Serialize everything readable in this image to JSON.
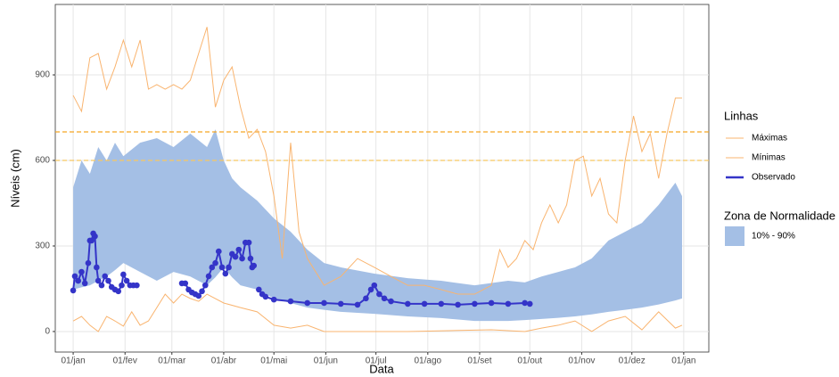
{
  "chart_data": {
    "type": "line",
    "x_label": "Data",
    "y_label": "Níveis (cm)",
    "xlim": [
      -10.7,
      380
    ],
    "ylim": [
      -72,
      1147
    ],
    "xticks": [
      {
        "value": 0,
        "label": "01/jan"
      },
      {
        "value": 31,
        "label": "01/fev"
      },
      {
        "value": 59,
        "label": "01/mar"
      },
      {
        "value": 90,
        "label": "01/abr"
      },
      {
        "value": 120,
        "label": "01/mai"
      },
      {
        "value": 151,
        "label": "01/jun"
      },
      {
        "value": 181,
        "label": "01/jul"
      },
      {
        "value": 212,
        "label": "01/ago"
      },
      {
        "value": 243,
        "label": "01/set"
      },
      {
        "value": 273,
        "label": "01/out"
      },
      {
        "value": 304,
        "label": "01/nov"
      },
      {
        "value": 334,
        "label": "01/dez"
      },
      {
        "value": 365,
        "label": "01/jan"
      }
    ],
    "yticks": [
      0,
      300,
      600,
      900
    ],
    "grid": true,
    "hlines": [
      {
        "value": 700,
        "color": "#f5a623"
      },
      {
        "value": 600,
        "color": "#f7c660"
      }
    ],
    "legend_title": "Linhas",
    "band_legend_title": "Zona de Normalidade",
    "band": {
      "name": "10% - 90%",
      "color": "#a4bfe5",
      "x": [
        0,
        5,
        10,
        15,
        20,
        25,
        30,
        40,
        50,
        60,
        70,
        80,
        85,
        90,
        95,
        100,
        110,
        120,
        130,
        140,
        150,
        160,
        180,
        200,
        220,
        240,
        260,
        270,
        280,
        290,
        300,
        310,
        320,
        330,
        340,
        350,
        360,
        364
      ],
      "high": [
        506,
        600,
        553,
        647,
        600,
        662,
        615,
        662,
        678,
        647,
        694,
        647,
        709,
        600,
        537,
        506,
        459,
        397,
        350,
        287,
        240,
        225,
        203,
        187,
        178,
        162,
        178,
        172,
        193,
        209,
        225,
        256,
        319,
        350,
        381,
        444,
        522,
        475
      ],
      "low": [
        147,
        155,
        162,
        178,
        193,
        215,
        240,
        209,
        178,
        209,
        193,
        162,
        190,
        225,
        190,
        162,
        147,
        116,
        100,
        84,
        76,
        69,
        62,
        53,
        47,
        37,
        37,
        40,
        44,
        48,
        53,
        60,
        69,
        76,
        84,
        95,
        109,
        116
      ]
    },
    "series": [
      {
        "name": "Máximas",
        "color": "#f9b46f",
        "x": [
          0,
          5,
          10,
          15,
          20,
          25,
          30,
          35,
          40,
          45,
          50,
          55,
          60,
          65,
          70,
          75,
          80,
          85,
          90,
          95,
          100,
          105,
          110,
          115,
          120,
          125,
          130,
          135,
          140,
          150,
          160,
          170,
          180,
          190,
          200,
          210,
          220,
          230,
          240,
          250,
          255,
          260,
          265,
          270,
          275,
          280,
          285,
          290,
          295,
          300,
          305,
          310,
          315,
          320,
          325,
          330,
          335,
          340,
          345,
          350,
          355,
          360,
          364
        ],
        "values": [
          828,
          772,
          960,
          975,
          850,
          928,
          1022,
          928,
          1022,
          850,
          866,
          850,
          866,
          850,
          881,
          975,
          1068,
          787,
          881,
          928,
          787,
          678,
          709,
          631,
          475,
          256,
          662,
          350,
          256,
          162,
          193,
          256,
          225,
          193,
          162,
          162,
          147,
          131,
          131,
          162,
          287,
          225,
          256,
          319,
          287,
          381,
          444,
          381,
          444,
          600,
          615,
          475,
          537,
          412,
          381,
          600,
          756,
          631,
          694,
          537,
          694,
          819,
          819
        ]
      },
      {
        "name": "Mínimas",
        "color": "#f9b46f",
        "x": [
          0,
          5,
          10,
          15,
          20,
          25,
          30,
          35,
          40,
          45,
          50,
          55,
          60,
          65,
          70,
          75,
          80,
          90,
          100,
          110,
          120,
          130,
          140,
          150,
          200,
          250,
          270,
          280,
          290,
          300,
          310,
          320,
          330,
          340,
          350,
          360,
          364
        ],
        "values": [
          37,
          53,
          22,
          0,
          53,
          37,
          19,
          69,
          22,
          37,
          84,
          131,
          100,
          131,
          116,
          106,
          131,
          100,
          84,
          69,
          22,
          12,
          22,
          0,
          0,
          6,
          0,
          12,
          22,
          37,
          0,
          37,
          53,
          6,
          69,
          12,
          22
        ]
      },
      {
        "name": "Observado",
        "color": "#3434c8",
        "x": [
          0,
          1,
          3,
          5,
          7,
          9,
          10,
          11,
          12,
          13,
          14,
          15,
          17,
          19,
          21,
          23,
          25,
          27,
          29,
          30,
          32,
          34,
          36,
          38,
          50,
          65,
          67,
          69,
          71,
          73,
          75,
          77,
          79,
          81,
          83,
          85,
          87,
          89,
          91,
          93,
          95,
          97,
          99,
          101,
          103,
          105,
          106,
          107,
          108,
          110,
          111,
          113,
          115,
          120,
          130,
          140,
          150,
          160,
          170,
          175,
          178,
          180,
          183,
          186,
          190,
          200,
          210,
          220,
          230,
          240,
          250,
          260,
          270,
          273
        ],
        "values": [
          144,
          194,
          178,
          209,
          169,
          240,
          319,
          319,
          344,
          334,
          225,
          178,
          162,
          194,
          178,
          156,
          147,
          141,
          162,
          200,
          178,
          162,
          162,
          162,
          null,
          169,
          169,
          147,
          137,
          131,
          125,
          141,
          162,
          194,
          225,
          240,
          281,
          225,
          203,
          225,
          272,
          262,
          287,
          256,
          312,
          312,
          256,
          225,
          231,
          null,
          147,
          131,
          122,
          112,
          106,
          100,
          100,
          97,
          94,
          116,
          147,
          162,
          131,
          116,
          106,
          97,
          97,
          97,
          94,
          97,
          100,
          97,
          100,
          97
        ]
      }
    ]
  }
}
